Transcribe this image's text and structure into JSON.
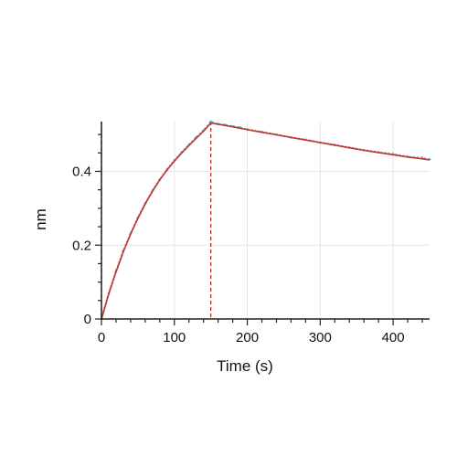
{
  "chart_data": {
    "type": "line",
    "title": "",
    "xlabel": "Time (s)",
    "ylabel": "nm",
    "xlim": [
      0,
      450
    ],
    "ylim": [
      0,
      0.535
    ],
    "x_ticks": [
      0,
      100,
      200,
      300,
      400
    ],
    "x_tick_labels": [
      "0",
      "100",
      "200",
      "300",
      "400"
    ],
    "y_ticks": [
      0,
      0.2,
      0.4
    ],
    "y_tick_labels": [
      "0",
      "0.2",
      "0.4"
    ],
    "grid": true,
    "legend": "none",
    "markers": [
      {
        "x": 0,
        "style": "dashed",
        "color": "#e8171b"
      },
      {
        "x": 150,
        "style": "dashed",
        "color": "#e8171b"
      }
    ],
    "series": [
      {
        "role": "measured",
        "color": "#29c7d8",
        "style": "dotted",
        "x": [
          0,
          10,
          20,
          30,
          40,
          50,
          60,
          70,
          80,
          90,
          100,
          110,
          120,
          130,
          140,
          150,
          160,
          170,
          180,
          190,
          200,
          220,
          240,
          260,
          280,
          300,
          320,
          340,
          360,
          380,
          400,
          420,
          440,
          450
        ],
        "y": [
          0.0,
          0.07,
          0.13,
          0.185,
          0.232,
          0.275,
          0.313,
          0.348,
          0.378,
          0.405,
          0.43,
          0.452,
          0.472,
          0.492,
          0.511,
          0.535,
          0.528,
          0.526,
          0.522,
          0.519,
          0.514,
          0.507,
          0.5,
          0.492,
          0.486,
          0.478,
          0.472,
          0.465,
          0.458,
          0.452,
          0.447,
          0.44,
          0.437,
          0.433
        ]
      },
      {
        "role": "fit",
        "color": "#d42a25",
        "style": "solid",
        "x": [
          0,
          10,
          20,
          30,
          40,
          50,
          60,
          70,
          80,
          90,
          100,
          110,
          120,
          130,
          140,
          150,
          160,
          170,
          180,
          190,
          200,
          220,
          240,
          260,
          280,
          300,
          320,
          340,
          360,
          380,
          400,
          420,
          440,
          450
        ],
        "y": [
          0.0,
          0.068,
          0.128,
          0.182,
          0.23,
          0.273,
          0.312,
          0.346,
          0.377,
          0.404,
          0.428,
          0.45,
          0.47,
          0.49,
          0.509,
          0.531,
          0.528,
          0.524,
          0.521,
          0.517,
          0.513,
          0.506,
          0.499,
          0.492,
          0.485,
          0.478,
          0.471,
          0.464,
          0.457,
          0.451,
          0.445,
          0.439,
          0.434,
          0.431
        ]
      }
    ]
  }
}
